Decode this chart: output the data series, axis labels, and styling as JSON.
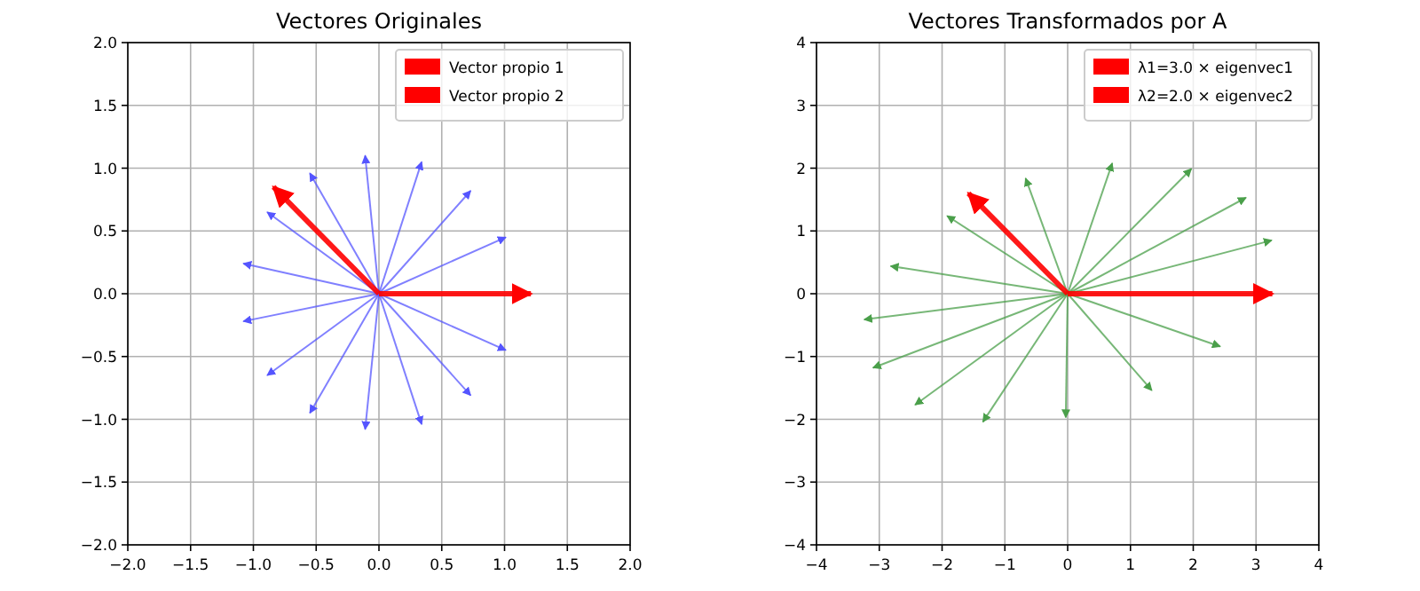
{
  "chart_data": [
    {
      "type": "line",
      "title": "Vectores Originales",
      "xlim": [
        -2,
        2
      ],
      "ylim": [
        -2,
        2
      ],
      "xticks": [
        {
          "value": -2,
          "label": "−2.0"
        },
        {
          "value": -1.5,
          "label": "−1.5"
        },
        {
          "value": -1,
          "label": "−1.0"
        },
        {
          "value": -0.5,
          "label": "−0.5"
        },
        {
          "value": 0,
          "label": "0.0"
        },
        {
          "value": 0.5,
          "label": "0.5"
        },
        {
          "value": 1,
          "label": "1.0"
        },
        {
          "value": 1.5,
          "label": "1.5"
        },
        {
          "value": 2,
          "label": "2.0"
        }
      ],
      "yticks": [
        {
          "value": -2,
          "label": "−2.0"
        },
        {
          "value": -1.5,
          "label": "−1.5"
        },
        {
          "value": -1,
          "label": "−1.0"
        },
        {
          "value": -0.5,
          "label": "−0.5"
        },
        {
          "value": 0,
          "label": "0.0"
        },
        {
          "value": 0.5,
          "label": "0.5"
        },
        {
          "value": 1,
          "label": "1.0"
        },
        {
          "value": 1.5,
          "label": "1.5"
        },
        {
          "value": 2,
          "label": "2.0"
        }
      ],
      "grid": true,
      "legend": "top right",
      "marker": "none",
      "line_style": "solid",
      "series": [
        {
          "color": "#5555ff",
          "x": [
            0,
            1.01
          ],
          "values": [
            0,
            0.45
          ]
        },
        {
          "color": "#5555ff",
          "x": [
            0,
            0.73
          ],
          "values": [
            0,
            0.82
          ]
        },
        {
          "color": "#5555ff",
          "x": [
            0,
            0.34
          ],
          "values": [
            0,
            1.05
          ]
        },
        {
          "color": "#5555ff",
          "x": [
            0,
            -0.11
          ],
          "values": [
            0,
            1.1
          ]
        },
        {
          "color": "#5555ff",
          "x": [
            0,
            -0.55
          ],
          "values": [
            0,
            0.96
          ]
        },
        {
          "color": "#5555ff",
          "x": [
            0,
            -0.89
          ],
          "values": [
            0,
            0.65
          ]
        },
        {
          "color": "#5555ff",
          "x": [
            0,
            -1.08
          ],
          "values": [
            0,
            0.24
          ]
        },
        {
          "color": "#5555ff",
          "x": [
            0,
            -1.08
          ],
          "values": [
            0,
            -0.22
          ]
        },
        {
          "color": "#5555ff",
          "x": [
            0,
            -0.89
          ],
          "values": [
            0,
            -0.65
          ]
        },
        {
          "color": "#5555ff",
          "x": [
            0,
            -0.55
          ],
          "values": [
            0,
            -0.95
          ]
        },
        {
          "color": "#5555ff",
          "x": [
            0,
            -0.11
          ],
          "values": [
            0,
            -1.08
          ]
        },
        {
          "color": "#5555ff",
          "x": [
            0,
            0.34
          ],
          "values": [
            0,
            -1.04
          ]
        },
        {
          "color": "#5555ff",
          "x": [
            0,
            0.73
          ],
          "values": [
            0,
            -0.81
          ]
        },
        {
          "color": "#5555ff",
          "x": [
            0,
            1.01
          ],
          "values": [
            0,
            -0.45
          ]
        },
        {
          "name": "Vector propio 1",
          "color": "#ff0000",
          "x": [
            0,
            1.21
          ],
          "values": [
            0,
            0
          ]
        },
        {
          "name": "Vector propio 2",
          "color": "#ff0000",
          "x": [
            0,
            -0.84
          ],
          "values": [
            0,
            0.85
          ]
        }
      ]
    },
    {
      "type": "line",
      "title": "Vectores Transformados por A",
      "xlim": [
        -4,
        4
      ],
      "ylim": [
        -4,
        4
      ],
      "xticks": [
        {
          "value": -4,
          "label": "−4"
        },
        {
          "value": -3,
          "label": "−3"
        },
        {
          "value": -2,
          "label": "−2"
        },
        {
          "value": -1,
          "label": "−1"
        },
        0,
        1,
        2,
        3,
        4
      ],
      "yticks": [
        {
          "value": -4,
          "label": "−4"
        },
        {
          "value": -3,
          "label": "−3"
        },
        {
          "value": -2,
          "label": "−2"
        },
        {
          "value": -1,
          "label": "−1"
        },
        0,
        1,
        2,
        3,
        4
      ],
      "grid": true,
      "legend": "top right",
      "marker": "none",
      "line_style": "solid",
      "series": [
        {
          "color": "#4a9f4a",
          "x": [
            0,
            3.25
          ],
          "values": [
            0,
            0.85
          ]
        },
        {
          "color": "#4a9f4a",
          "x": [
            0,
            2.84
          ],
          "values": [
            0,
            1.53
          ]
        },
        {
          "color": "#4a9f4a",
          "x": [
            0,
            1.97
          ],
          "values": [
            0,
            1.99
          ]
        },
        {
          "color": "#4a9f4a",
          "x": [
            0,
            0.71
          ],
          "values": [
            0,
            2.08
          ]
        },
        {
          "color": "#4a9f4a",
          "x": [
            0,
            -0.67
          ],
          "values": [
            0,
            1.84
          ]
        },
        {
          "color": "#4a9f4a",
          "x": [
            0,
            -1.92
          ],
          "values": [
            0,
            1.24
          ]
        },
        {
          "color": "#4a9f4a",
          "x": [
            0,
            -2.82
          ],
          "values": [
            0,
            0.44
          ]
        },
        {
          "color": "#4a9f4a",
          "x": [
            0,
            -3.24
          ],
          "values": [
            0,
            -0.41
          ]
        },
        {
          "color": "#4a9f4a",
          "x": [
            0,
            -3.1
          ],
          "values": [
            0,
            -1.18
          ]
        },
        {
          "color": "#4a9f4a",
          "x": [
            0,
            -2.43
          ],
          "values": [
            0,
            -1.77
          ]
        },
        {
          "color": "#4a9f4a",
          "x": [
            0,
            -1.35
          ],
          "values": [
            0,
            -2.04
          ]
        },
        {
          "color": "#4a9f4a",
          "x": [
            0,
            -0.03
          ],
          "values": [
            0,
            -1.97
          ]
        },
        {
          "color": "#4a9f4a",
          "x": [
            0,
            1.34
          ],
          "values": [
            0,
            -1.54
          ]
        },
        {
          "color": "#4a9f4a",
          "x": [
            0,
            2.43
          ],
          "values": [
            0,
            -0.84
          ]
        },
        {
          "name": "λ1=3.0 × eigenvec1",
          "color": "#ff0000",
          "x": [
            0,
            3.26
          ],
          "values": [
            0,
            0
          ]
        },
        {
          "name": "λ2=2.0 × eigenvec2",
          "color": "#ff0000",
          "x": [
            0,
            -1.58
          ],
          "values": [
            0,
            1.6
          ]
        }
      ]
    }
  ]
}
